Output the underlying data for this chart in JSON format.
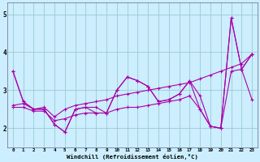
{
  "xlabel": "Windchill (Refroidissement éolien,°C)",
  "xlim": [
    -0.5,
    23.5
  ],
  "ylim": [
    1.5,
    5.3
  ],
  "yticks": [
    2,
    3,
    4,
    5
  ],
  "xticks": [
    0,
    1,
    2,
    3,
    4,
    5,
    6,
    7,
    8,
    9,
    10,
    11,
    12,
    13,
    14,
    15,
    16,
    17,
    18,
    19,
    20,
    21,
    22,
    23
  ],
  "background_color": "#cceeff",
  "line_color": "#aa00aa",
  "grid_color": "#99cccc",
  "lines": [
    {
      "x": [
        0,
        1,
        2,
        3,
        4,
        5,
        6,
        7,
        8,
        9,
        10,
        11,
        12,
        13,
        14,
        15,
        16,
        17,
        18,
        19,
        20,
        21,
        22,
        23
      ],
      "y": [
        3.5,
        2.7,
        2.5,
        2.5,
        2.1,
        1.9,
        2.5,
        2.55,
        2.55,
        2.4,
        3.0,
        3.35,
        3.25,
        3.1,
        2.7,
        2.75,
        2.9,
        3.25,
        2.85,
        2.05,
        2.0,
        4.9,
        3.55,
        2.75
      ]
    },
    {
      "x": [
        0,
        1,
        2,
        3,
        4,
        5,
        6,
        7,
        8,
        9,
        10,
        11,
        12,
        13,
        14,
        15,
        16,
        17,
        18,
        19,
        20,
        21,
        22,
        23
      ],
      "y": [
        2.6,
        2.65,
        2.5,
        2.55,
        2.3,
        2.5,
        2.6,
        2.65,
        2.7,
        2.75,
        2.85,
        2.9,
        2.95,
        3.0,
        3.05,
        3.1,
        3.15,
        3.2,
        3.3,
        3.4,
        3.5,
        3.6,
        3.7,
        3.95
      ]
    },
    {
      "x": [
        0,
        1,
        2,
        3,
        4,
        5,
        6,
        7,
        8,
        9,
        10,
        11,
        12,
        13,
        14,
        15,
        16,
        17,
        18,
        19,
        20,
        21,
        22,
        23
      ],
      "y": [
        2.55,
        2.55,
        2.45,
        2.45,
        2.2,
        2.25,
        2.35,
        2.4,
        2.4,
        2.4,
        2.5,
        2.55,
        2.55,
        2.6,
        2.65,
        2.7,
        2.75,
        2.85,
        2.5,
        2.05,
        2.0,
        3.5,
        3.55,
        3.95
      ]
    },
    {
      "x": [
        0,
        1,
        2,
        3,
        4,
        5,
        6,
        7,
        8,
        9,
        10,
        11,
        12,
        13,
        14,
        15,
        16,
        17,
        18,
        19,
        20,
        21,
        22,
        23
      ],
      "y": [
        3.5,
        2.7,
        2.5,
        2.5,
        2.1,
        1.9,
        2.5,
        2.55,
        2.4,
        2.4,
        3.0,
        3.35,
        3.25,
        3.1,
        2.7,
        2.75,
        2.9,
        3.25,
        2.5,
        2.05,
        2.0,
        4.9,
        3.55,
        3.95
      ]
    }
  ]
}
